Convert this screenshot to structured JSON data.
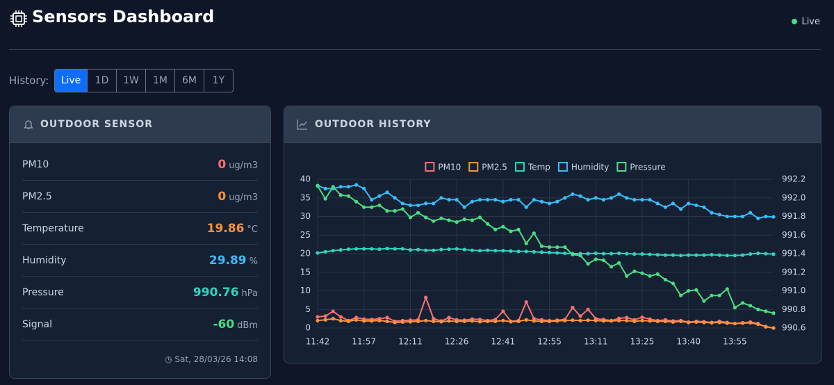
{
  "header": {
    "title": "Sensors Dashboard",
    "status": "Live"
  },
  "history": {
    "label": "History:",
    "buttons": [
      "Live",
      "1D",
      "1W",
      "1M",
      "6M",
      "1Y"
    ],
    "active": 0
  },
  "sensor_card": {
    "title": "OUTDOOR SENSOR",
    "rows": [
      {
        "label": "PM10",
        "value": 0,
        "unit": "ug/m3",
        "color": "#f87171"
      },
      {
        "label": "PM2.5",
        "value": 0,
        "unit": "ug/m3",
        "color": "#fb923c"
      },
      {
        "label": "Temperature",
        "value": 19.86,
        "unit": "°C",
        "color": "#fb923c"
      },
      {
        "label": "Humidity",
        "value": 29.89,
        "unit": "%",
        "color": "#38bdf8"
      },
      {
        "label": "Pressure",
        "value": 990.76,
        "unit": "hPa",
        "color": "#2dd4bf"
      },
      {
        "label": "Signal",
        "value": -60,
        "unit": "dBm",
        "color": "#4ade80"
      }
    ],
    "updated": "Sat, 28/03/26 14:08"
  },
  "history_card": {
    "title": "OUTDOOR HISTORY"
  },
  "chart_data": {
    "type": "line",
    "categories": [
      "11:42",
      null,
      null,
      null,
      null,
      null,
      "11:57",
      null,
      null,
      null,
      null,
      null,
      "12:11",
      null,
      null,
      null,
      null,
      null,
      "12:26",
      null,
      null,
      null,
      null,
      null,
      "12:41",
      null,
      null,
      null,
      null,
      null,
      "12:55",
      null,
      null,
      null,
      null,
      null,
      "13:11",
      null,
      null,
      null,
      null,
      null,
      "13:25",
      null,
      null,
      null,
      null,
      null,
      "13:40",
      null,
      null,
      null,
      null,
      null,
      "13:55",
      null,
      null,
      null,
      null,
      null
    ],
    "ylim": [
      0,
      40
    ],
    "yticks": [
      0,
      5,
      10,
      15,
      20,
      25,
      30,
      35,
      40
    ],
    "y2lim": [
      990.6,
      992.2
    ],
    "y2ticks": [
      990.6,
      990.8,
      {
        "value": 991,
        "label": "991.0"
      },
      991.2,
      991.4,
      991.6,
      991.8,
      {
        "value": 992,
        "label": "992.0"
      },
      992.2
    ],
    "grid": true,
    "series": [
      {
        "name": "PM10",
        "color": "#f87171",
        "values": [
          3,
          3.2,
          4.5,
          3,
          2,
          2.8,
          2.4,
          2.3,
          2.5,
          2.8,
          1.8,
          2,
          2.1,
          2.2,
          8.2,
          2.5,
          1.9,
          2.8,
          2.2,
          2.1,
          2.4,
          2.3,
          2,
          2.3,
          4.5,
          1.8,
          2,
          7,
          2.5,
          2.2,
          2,
          2.1,
          2.3,
          5.5,
          3.2,
          5,
          2.5,
          2.3,
          2,
          2.6,
          2.8,
          2.2,
          2.9,
          2.4,
          2,
          2.2,
          1.9,
          2,
          1.6,
          1.8,
          1.7,
          1.5,
          1.8,
          1.5,
          1.2,
          1.4,
          1.6,
          1.2,
          0.3,
          0
        ]
      },
      {
        "name": "PM2.5",
        "color": "#fb923c",
        "values": [
          2,
          2.2,
          2.5,
          2,
          1.8,
          2.2,
          1.9,
          1.9,
          2,
          1.8,
          1.5,
          1.6,
          1.7,
          1.8,
          2,
          1.8,
          1.7,
          1.9,
          1.8,
          1.8,
          1.9,
          1.7,
          1.8,
          1.8,
          2,
          1.7,
          1.8,
          2.2,
          1.9,
          1.8,
          1.8,
          1.9,
          2,
          2.1,
          2,
          2.1,
          2,
          1.9,
          1.9,
          2,
          2,
          1.8,
          2,
          1.9,
          1.8,
          1.8,
          1.6,
          1.8,
          1.5,
          1.6,
          1.5,
          1.4,
          1.5,
          1.3,
          1.2,
          1.3,
          1.4,
          1,
          0.4,
          0
        ]
      },
      {
        "name": "Temp",
        "color": "#2dd4bf",
        "values": [
          20.2,
          20.5,
          20.8,
          21,
          21.2,
          21.3,
          21.3,
          21.3,
          21.2,
          21.4,
          21.3,
          21.3,
          21,
          21.1,
          20.9,
          20.9,
          21.1,
          21.2,
          21.3,
          21.1,
          20.9,
          20.8,
          20.9,
          20.8,
          20.8,
          20.7,
          20.6,
          20.6,
          20.5,
          20.4,
          20.3,
          20.2,
          20.1,
          20,
          20,
          20,
          20.1,
          20,
          20,
          20.1,
          20,
          19.9,
          19.9,
          19.8,
          19.7,
          19.6,
          19.6,
          19.5,
          19.6,
          19.6,
          19.6,
          19.7,
          19.6,
          19.5,
          19.5,
          19.6,
          19.9,
          20.1,
          20,
          19.86
        ]
      },
      {
        "name": "Humidity",
        "color": "#38bdf8",
        "values": [
          38.3,
          37.5,
          37.5,
          38,
          38,
          38.5,
          37.5,
          34.5,
          35.5,
          36.5,
          35,
          33.5,
          33,
          33,
          33.5,
          33.5,
          35,
          34.5,
          34.5,
          32.5,
          34,
          34.5,
          34.5,
          34.5,
          34,
          34.5,
          34.5,
          32.5,
          34.5,
          34,
          33.5,
          34,
          35,
          36,
          35.5,
          34.5,
          35,
          34.5,
          35,
          36,
          35,
          34.5,
          34.5,
          34.5,
          33.5,
          32.5,
          33.5,
          32,
          33.5,
          33,
          32.5,
          31,
          30.5,
          30,
          30,
          30,
          31,
          29.5,
          30,
          29.89
        ]
      },
      {
        "name": "Pressure",
        "color": "#4ade80",
        "axis": "y2",
        "values": [
          992.13,
          991.99,
          992.12,
          992.03,
          992.02,
          991.96,
          991.9,
          991.9,
          991.92,
          991.86,
          991.86,
          991.88,
          991.79,
          991.84,
          991.79,
          991.75,
          991.78,
          991.76,
          991.74,
          991.77,
          991.76,
          991.79,
          991.72,
          991.66,
          991.69,
          991.64,
          991.66,
          991.51,
          991.62,
          991.48,
          991.47,
          991.47,
          991.47,
          991.39,
          991.38,
          991.29,
          991.34,
          991.33,
          991.26,
          991.3,
          991.16,
          991.21,
          991.19,
          991.16,
          991.18,
          991.12,
          991.08,
          990.95,
          991,
          991.01,
          990.89,
          990.95,
          990.95,
          991.02,
          990.82,
          990.87,
          990.84,
          990.8,
          990.78,
          990.76
        ]
      }
    ]
  }
}
